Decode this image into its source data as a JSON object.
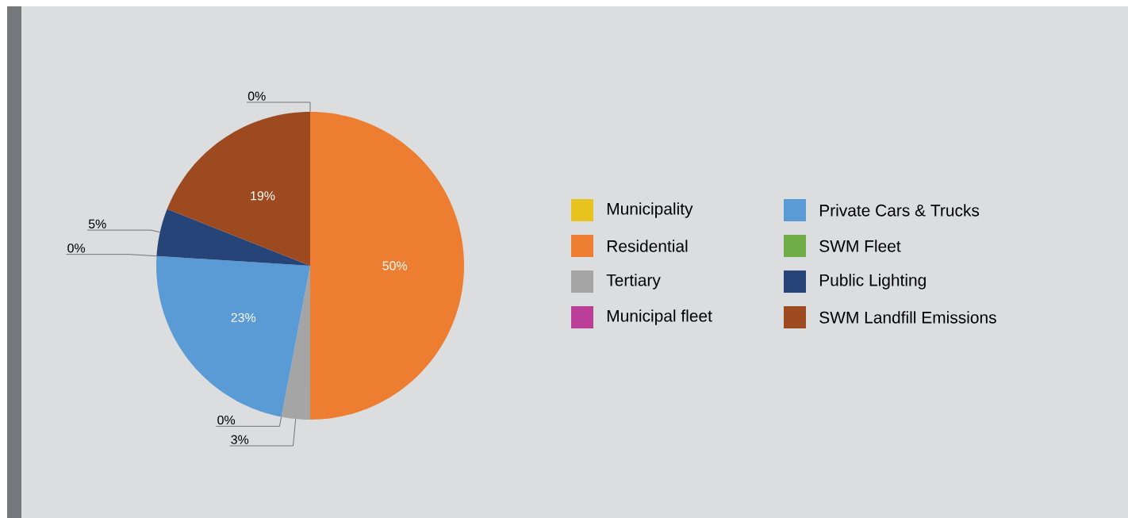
{
  "chart_data": {
    "type": "pie",
    "categories": [
      "Municipality",
      "Residential",
      "Tertiary",
      "Municipal fleet",
      "Private Cars & Trucks",
      "SWM Fleet",
      "Public Lighting",
      "SWM Landfill Emissions"
    ],
    "values": [
      0,
      50,
      3,
      0,
      23,
      0,
      5,
      19
    ],
    "value_labels": [
      "0%",
      "50%",
      "3%",
      "0%",
      "23%",
      "0%",
      "5%",
      "19%"
    ],
    "colors": [
      "#e8c21e",
      "#ed7d31",
      "#a5a5a5",
      "#bb3f98",
      "#5b9bd5",
      "#70ad47",
      "#264478",
      "#9e4a21"
    ],
    "legend": "right"
  }
}
